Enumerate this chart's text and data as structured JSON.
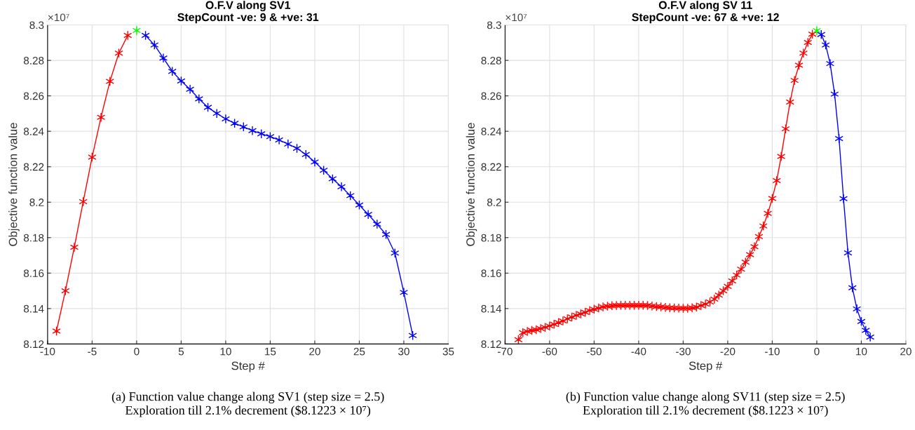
{
  "chart_data": [
    {
      "type": "line",
      "title": "O.F.V along SV1",
      "subtitle": "StepCount -ve: 9 & +ve: 31",
      "xlabel": "Step #",
      "ylabel": "Objective function value",
      "xlim": [
        -10,
        35
      ],
      "xticks": [
        -10,
        -5,
        0,
        5,
        10,
        15,
        20,
        25,
        30,
        35
      ],
      "ylim": [
        8.12,
        8.3
      ],
      "yticks": [
        8.12,
        8.14,
        8.16,
        8.18,
        8.2,
        8.22,
        8.24,
        8.26,
        8.28,
        8.3
      ],
      "grid": true,
      "marker": "cross",
      "line_style": "solid",
      "annotations": [
        "×10⁷",
        "(a) Function value change along SV1 (step size = 2.5)\nExploration till 2.1% decrement ($8.1223 × 10⁷)"
      ],
      "series": [
        {
          "color": "#ff0000",
          "x": [
            -9,
            -8,
            -7,
            -6,
            -5,
            -4,
            -3,
            -2,
            -1
          ],
          "values": [
            8.1273,
            8.15,
            8.1746,
            8.2003,
            8.2254,
            8.2479,
            8.2682,
            8.2841,
            8.2941
          ]
        },
        {
          "color": "#00ff00",
          "x": [
            0
          ],
          "values": [
            8.2969
          ]
        },
        {
          "color": "#0000ff",
          "x": [
            1,
            2,
            3,
            4,
            5,
            6,
            7,
            8,
            9,
            10,
            11,
            12,
            13,
            14,
            15,
            16,
            17,
            18,
            19,
            20,
            21,
            22,
            23,
            24,
            25,
            26,
            27,
            28,
            29,
            30,
            31
          ],
          "values": [
            8.2941,
            8.2887,
            8.2813,
            8.2738,
            8.2684,
            8.2637,
            8.2583,
            8.2535,
            8.2501,
            8.247,
            8.2445,
            8.2425,
            8.2404,
            8.2386,
            8.237,
            8.2351,
            8.2328,
            8.2304,
            8.2269,
            8.2227,
            8.218,
            8.2132,
            8.2087,
            8.2037,
            8.1984,
            8.1931,
            8.1876,
            8.1818,
            8.1713,
            8.1491,
            8.1248
          ]
        }
      ]
    },
    {
      "type": "line",
      "title": "O.F.V along SV 11",
      "subtitle": "StepCount -ve: 67 & +ve: 12",
      "xlabel": "Step #",
      "ylabel": "Objective function value",
      "xlim": [
        -70,
        20
      ],
      "xticks": [
        -70,
        -60,
        -50,
        -40,
        -30,
        -20,
        -10,
        0,
        10,
        20
      ],
      "ylim": [
        8.12,
        8.3
      ],
      "yticks": [
        8.12,
        8.14,
        8.16,
        8.18,
        8.2,
        8.22,
        8.24,
        8.26,
        8.28,
        8.3
      ],
      "grid": true,
      "marker": "cross",
      "line_style": "solid",
      "annotations": [
        "×10⁷",
        "(b) Function value change along SV11 (step size = 2.5)\nExploration till 2.1% decrement ($8.1223 × 10⁷)"
      ],
      "series": [
        {
          "color": "#ff0000",
          "x": [
            -67,
            -66,
            -65,
            -64,
            -63,
            -62,
            -61,
            -60,
            -59,
            -58,
            -57,
            -56,
            -55,
            -54,
            -53,
            -52,
            -51,
            -50,
            -49,
            -48,
            -47,
            -46,
            -45,
            -44,
            -43,
            -42,
            -41,
            -40,
            -39,
            -38,
            -37,
            -36,
            -35,
            -34,
            -33,
            -32,
            -31,
            -30,
            -29,
            -28,
            -27,
            -26,
            -25,
            -24,
            -23,
            -22,
            -21,
            -20,
            -19,
            -18,
            -17,
            -16,
            -15,
            -14,
            -13,
            -12,
            -11,
            -10,
            -9,
            -8,
            -7,
            -6,
            -5,
            -4,
            -3,
            -2,
            -1
          ],
          "values": [
            8.1224,
            8.1264,
            8.1271,
            8.1277,
            8.1281,
            8.1287,
            8.1294,
            8.1302,
            8.1311,
            8.1321,
            8.133,
            8.1342,
            8.1352,
            8.1362,
            8.137,
            8.1379,
            8.1389,
            8.1396,
            8.1403,
            8.1409,
            8.1413,
            8.1416,
            8.1417,
            8.1418,
            8.1418,
            8.1418,
            8.1418,
            8.1418,
            8.1418,
            8.1417,
            8.1414,
            8.1411,
            8.1409,
            8.1406,
            8.1404,
            8.1403,
            8.1402,
            8.1401,
            8.1401,
            8.1404,
            8.1408,
            8.1417,
            8.1425,
            8.1437,
            8.1453,
            8.1476,
            8.15,
            8.1525,
            8.1556,
            8.1589,
            8.1622,
            8.1662,
            8.1704,
            8.1749,
            8.1806,
            8.1866,
            8.1937,
            8.2021,
            8.2122,
            8.2258,
            8.2414,
            8.2565,
            8.2687,
            8.2773,
            8.2841,
            8.2901,
            8.2948
          ]
        },
        {
          "color": "#00ff00",
          "x": [
            0
          ],
          "values": [
            8.2968
          ]
        },
        {
          "color": "#0000ff",
          "x": [
            1,
            2,
            3,
            4,
            5,
            6,
            7,
            8,
            9,
            10,
            11,
            12
          ],
          "values": [
            8.2946,
            8.2887,
            8.2782,
            8.261,
            8.2359,
            8.202,
            8.1714,
            8.1517,
            8.1398,
            8.1327,
            8.1277,
            8.1239
          ]
        }
      ]
    }
  ]
}
